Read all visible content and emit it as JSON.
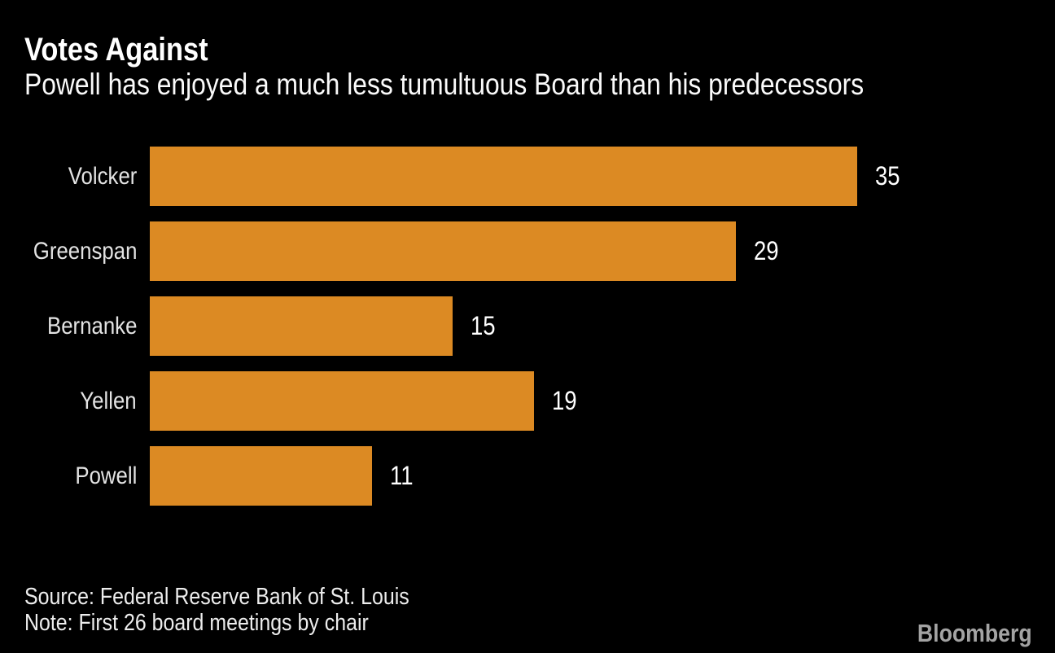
{
  "page": {
    "background_color": "#000000"
  },
  "header": {
    "title": "Votes Against",
    "subtitle": "Powell has enjoyed a much less tumultuous Board than his predecessors"
  },
  "chart_data": {
    "type": "bar",
    "orientation": "horizontal",
    "title": "Votes Against",
    "subtitle": "Powell has enjoyed a much less tumultuous Board than his predecessors",
    "categories": [
      "Volcker",
      "Greenspan",
      "Bernanke",
      "Yellen",
      "Powell"
    ],
    "values": [
      35,
      29,
      15,
      19,
      11
    ],
    "xlabel": "",
    "ylabel": "",
    "xlim": [
      0,
      35
    ],
    "grid": false,
    "legend": false,
    "value_labels_shown": true,
    "bar_color": "#DC8A23",
    "value_label_color": "#FFFFFF",
    "category_label_color": "#E3E3E3"
  },
  "footer": {
    "source": "Source: Federal Reserve Bank of St. Louis",
    "note": "Note: First 26 board meetings by chair",
    "brand": "Bloomberg",
    "brand_color": "#A3A3A3"
  }
}
